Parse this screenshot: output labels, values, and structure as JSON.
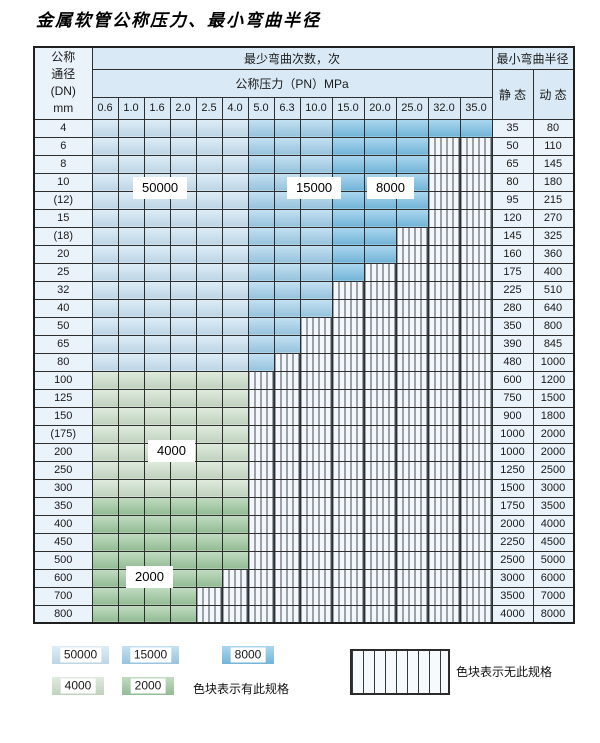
{
  "title": "金属软管公称压力、最小弯曲半径",
  "colors": {
    "band_50000": "#c9e2f3",
    "band_15000": "#a0cfeb",
    "band_8000": "#79bfe5",
    "band_4000": "#ccdfca",
    "band_2000": "#9cc79d",
    "header_bg": "#d9eaf6",
    "label_bg": "#eaf2fa",
    "grid": "#2e2e2e"
  },
  "table": {
    "header": {
      "dn_lines": [
        "公称",
        "通径",
        "(DN)",
        "mm"
      ],
      "bend_times_label": "最少弯曲次数，次",
      "pressure_label": "公称压力（PN）MPa",
      "radius_label": "最小弯曲半径",
      "static_label": "静 态",
      "dynamic_label": "动 态",
      "pressure_columns": [
        "0.6",
        "1.0",
        "1.6",
        "2.0",
        "2.5",
        "4.0",
        "5.0",
        "6.3",
        "10.0",
        "15.0",
        "20.0",
        "25.0",
        "32.0",
        "35.0"
      ]
    },
    "band_values": {
      "b1": "50000",
      "b2": "15000",
      "b3": "8000",
      "g1": "4000",
      "g2": "2000",
      "x": "none"
    },
    "rows": [
      {
        "dn": "4",
        "cells": [
          "50000",
          "50000",
          "50000",
          "50000",
          "50000",
          "50000",
          "15000",
          "15000",
          "15000",
          "8000",
          "8000",
          "8000",
          "8000",
          "8000"
        ],
        "static": "35",
        "dynamic": "80"
      },
      {
        "dn": "6",
        "cells": [
          "50000",
          "50000",
          "50000",
          "50000",
          "50000",
          "50000",
          "15000",
          "15000",
          "15000",
          "8000",
          "8000",
          "8000",
          "none",
          "none"
        ],
        "static": "50",
        "dynamic": "110"
      },
      {
        "dn": "8",
        "cells": [
          "50000",
          "50000",
          "50000",
          "50000",
          "50000",
          "50000",
          "15000",
          "15000",
          "15000",
          "8000",
          "8000",
          "8000",
          "none",
          "none"
        ],
        "static": "65",
        "dynamic": "145"
      },
      {
        "dn": "10",
        "cells": [
          "50000",
          "50000",
          "50000",
          "50000",
          "50000",
          "50000",
          "15000",
          "15000",
          "15000",
          "8000",
          "8000",
          "8000",
          "none",
          "none"
        ],
        "static": "80",
        "dynamic": "180"
      },
      {
        "dn": "(12)",
        "cells": [
          "50000",
          "50000",
          "50000",
          "50000",
          "50000",
          "50000",
          "15000",
          "15000",
          "15000",
          "8000",
          "8000",
          "8000",
          "none",
          "none"
        ],
        "static": "95",
        "dynamic": "215"
      },
      {
        "dn": "15",
        "cells": [
          "50000",
          "50000",
          "50000",
          "50000",
          "50000",
          "50000",
          "15000",
          "15000",
          "15000",
          "8000",
          "8000",
          "8000",
          "none",
          "none"
        ],
        "static": "120",
        "dynamic": "270"
      },
      {
        "dn": "(18)",
        "cells": [
          "50000",
          "50000",
          "50000",
          "50000",
          "50000",
          "50000",
          "15000",
          "15000",
          "15000",
          "8000",
          "8000",
          "none",
          "none",
          "none"
        ],
        "static": "145",
        "dynamic": "325"
      },
      {
        "dn": "20",
        "cells": [
          "50000",
          "50000",
          "50000",
          "50000",
          "50000",
          "50000",
          "15000",
          "15000",
          "15000",
          "8000",
          "8000",
          "none",
          "none",
          "none"
        ],
        "static": "160",
        "dynamic": "360"
      },
      {
        "dn": "25",
        "cells": [
          "50000",
          "50000",
          "50000",
          "50000",
          "50000",
          "50000",
          "15000",
          "15000",
          "15000",
          "8000",
          "none",
          "none",
          "none",
          "none"
        ],
        "static": "175",
        "dynamic": "400"
      },
      {
        "dn": "32",
        "cells": [
          "50000",
          "50000",
          "50000",
          "50000",
          "50000",
          "50000",
          "15000",
          "15000",
          "15000",
          "none",
          "none",
          "none",
          "none",
          "none"
        ],
        "static": "225",
        "dynamic": "510"
      },
      {
        "dn": "40",
        "cells": [
          "50000",
          "50000",
          "50000",
          "50000",
          "50000",
          "50000",
          "15000",
          "15000",
          "15000",
          "none",
          "none",
          "none",
          "none",
          "none"
        ],
        "static": "280",
        "dynamic": "640"
      },
      {
        "dn": "50",
        "cells": [
          "50000",
          "50000",
          "50000",
          "50000",
          "50000",
          "50000",
          "15000",
          "15000",
          "none",
          "none",
          "none",
          "none",
          "none",
          "none"
        ],
        "static": "350",
        "dynamic": "800"
      },
      {
        "dn": "65",
        "cells": [
          "50000",
          "50000",
          "50000",
          "50000",
          "50000",
          "50000",
          "15000",
          "15000",
          "none",
          "none",
          "none",
          "none",
          "none",
          "none"
        ],
        "static": "390",
        "dynamic": "845"
      },
      {
        "dn": "80",
        "cells": [
          "50000",
          "50000",
          "50000",
          "50000",
          "50000",
          "50000",
          "15000",
          "none",
          "none",
          "none",
          "none",
          "none",
          "none",
          "none"
        ],
        "static": "480",
        "dynamic": "1000"
      },
      {
        "dn": "100",
        "cells": [
          "4000",
          "4000",
          "4000",
          "4000",
          "4000",
          "4000",
          "none",
          "none",
          "none",
          "none",
          "none",
          "none",
          "none",
          "none"
        ],
        "static": "600",
        "dynamic": "1200"
      },
      {
        "dn": "125",
        "cells": [
          "4000",
          "4000",
          "4000",
          "4000",
          "4000",
          "4000",
          "none",
          "none",
          "none",
          "none",
          "none",
          "none",
          "none",
          "none"
        ],
        "static": "750",
        "dynamic": "1500"
      },
      {
        "dn": "150",
        "cells": [
          "4000",
          "4000",
          "4000",
          "4000",
          "4000",
          "4000",
          "none",
          "none",
          "none",
          "none",
          "none",
          "none",
          "none",
          "none"
        ],
        "static": "900",
        "dynamic": "1800"
      },
      {
        "dn": "(175)",
        "cells": [
          "4000",
          "4000",
          "4000",
          "4000",
          "4000",
          "4000",
          "none",
          "none",
          "none",
          "none",
          "none",
          "none",
          "none",
          "none"
        ],
        "static": "1000",
        "dynamic": "2000"
      },
      {
        "dn": "200",
        "cells": [
          "4000",
          "4000",
          "4000",
          "4000",
          "4000",
          "4000",
          "none",
          "none",
          "none",
          "none",
          "none",
          "none",
          "none",
          "none"
        ],
        "static": "1000",
        "dynamic": "2000"
      },
      {
        "dn": "250",
        "cells": [
          "4000",
          "4000",
          "4000",
          "4000",
          "4000",
          "4000",
          "none",
          "none",
          "none",
          "none",
          "none",
          "none",
          "none",
          "none"
        ],
        "static": "1250",
        "dynamic": "2500"
      },
      {
        "dn": "300",
        "cells": [
          "4000",
          "4000",
          "4000",
          "4000",
          "4000",
          "4000",
          "none",
          "none",
          "none",
          "none",
          "none",
          "none",
          "none",
          "none"
        ],
        "static": "1500",
        "dynamic": "3000"
      },
      {
        "dn": "350",
        "cells": [
          "2000",
          "2000",
          "2000",
          "2000",
          "2000",
          "2000",
          "none",
          "none",
          "none",
          "none",
          "none",
          "none",
          "none",
          "none"
        ],
        "static": "1750",
        "dynamic": "3500"
      },
      {
        "dn": "400",
        "cells": [
          "2000",
          "2000",
          "2000",
          "2000",
          "2000",
          "2000",
          "none",
          "none",
          "none",
          "none",
          "none",
          "none",
          "none",
          "none"
        ],
        "static": "2000",
        "dynamic": "4000"
      },
      {
        "dn": "450",
        "cells": [
          "2000",
          "2000",
          "2000",
          "2000",
          "2000",
          "2000",
          "none",
          "none",
          "none",
          "none",
          "none",
          "none",
          "none",
          "none"
        ],
        "static": "2250",
        "dynamic": "4500"
      },
      {
        "dn": "500",
        "cells": [
          "2000",
          "2000",
          "2000",
          "2000",
          "2000",
          "2000",
          "none",
          "none",
          "none",
          "none",
          "none",
          "none",
          "none",
          "none"
        ],
        "static": "2500",
        "dynamic": "5000"
      },
      {
        "dn": "600",
        "cells": [
          "2000",
          "2000",
          "2000",
          "2000",
          "2000",
          "none",
          "none",
          "none",
          "none",
          "none",
          "none",
          "none",
          "none",
          "none"
        ],
        "static": "3000",
        "dynamic": "6000"
      },
      {
        "dn": "700",
        "cells": [
          "2000",
          "2000",
          "2000",
          "2000",
          "none",
          "none",
          "none",
          "none",
          "none",
          "none",
          "none",
          "none",
          "none",
          "none"
        ],
        "static": "3500",
        "dynamic": "7000"
      },
      {
        "dn": "800",
        "cells": [
          "2000",
          "2000",
          "2000",
          "2000",
          "none",
          "none",
          "none",
          "none",
          "none",
          "none",
          "none",
          "none",
          "none",
          "none"
        ],
        "static": "4000",
        "dynamic": "8000"
      }
    ]
  },
  "overlay_labels": {
    "l50000": "50000",
    "l15000": "15000",
    "l8000": "8000",
    "l4000": "4000",
    "l2000": "2000"
  },
  "legend": {
    "items": [
      {
        "value": "50000",
        "band": "b1"
      },
      {
        "value": "15000",
        "band": "b2"
      },
      {
        "value": "8000",
        "band": "b3"
      },
      {
        "value": "4000",
        "band": "g1"
      },
      {
        "value": "2000",
        "band": "g2"
      }
    ],
    "has_spec_text": "色块表示有此规格",
    "no_spec_text": "色块表示无此规格"
  }
}
